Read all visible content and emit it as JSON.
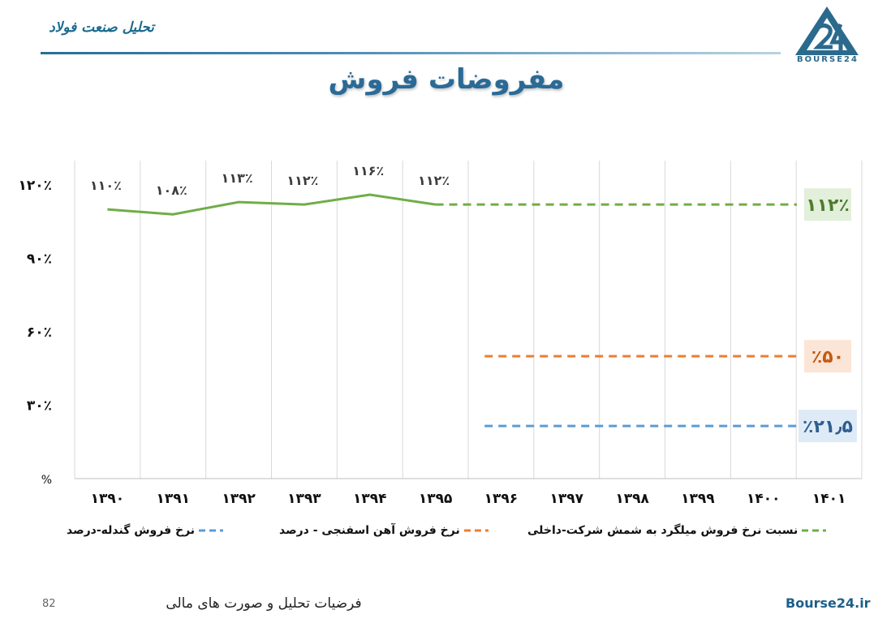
{
  "header": {
    "title": "تحلیل صنعت فولاد",
    "logo_text": "BOURSE24"
  },
  "page": {
    "title": "مفروضات فروش"
  },
  "chart_data": {
    "type": "line",
    "categories": [
      "۱۳۹۰",
      "۱۳۹۱",
      "۱۳۹۲",
      "۱۳۹۳",
      "۱۳۹۴",
      "۱۳۹۵",
      "۱۳۹۶",
      "۱۳۹۷",
      "۱۳۹۸",
      "۱۳۹۹",
      "۱۴۰۰",
      "۱۴۰۱"
    ],
    "y_ticks": [
      "۱۲۰٪",
      "۹۰٪",
      "۶۰٪",
      "۳۰٪",
      "%"
    ],
    "y_tick_values": [
      120,
      90,
      60,
      30,
      0
    ],
    "ylim": [
      0,
      120
    ],
    "grid": true,
    "legend_position": "bottom",
    "series": [
      {
        "name": "نسبت نرخ فروش میلگرد به شمش شرکت-داخلی",
        "color": "#70ad47",
        "values": [
          110,
          108,
          113,
          112,
          116,
          112,
          null,
          null,
          null,
          null,
          null,
          null
        ],
        "labels": [
          "۱۱۰٪",
          "۱۰۸٪",
          "۱۱۳٪",
          "۱۱۲٪",
          "۱۱۶٪",
          "۱۱۲٪"
        ],
        "projection_from_index": 5,
        "projection_value": 112,
        "projection_label": "۱۱۲٪",
        "label_bg": "#e2efda"
      },
      {
        "name": "نرخ فروش آهن اسفنجی - درصد",
        "color": "#ed7d31",
        "values": [
          null,
          null,
          null,
          null,
          null,
          null,
          50,
          50,
          50,
          50,
          50,
          50
        ],
        "projection_from_index": 6,
        "projection_value": 50,
        "projection_label": "٪۵۰",
        "label_bg": "#fbe5d6"
      },
      {
        "name": "نرخ فروش گندله-درصد",
        "color": "#5b9bd5",
        "values": [
          null,
          null,
          null,
          null,
          null,
          null,
          21.5,
          21.5,
          21.5,
          21.5,
          21.5,
          21.5
        ],
        "projection_from_index": 6,
        "projection_value": 21.5,
        "projection_label": "٪۲۱٫۵",
        "label_bg": "#deebf7"
      }
    ]
  },
  "footer": {
    "page_number": "82",
    "text": "فرضیات تحلیل و صورت های مالی",
    "site": "Bourse24.ir"
  }
}
